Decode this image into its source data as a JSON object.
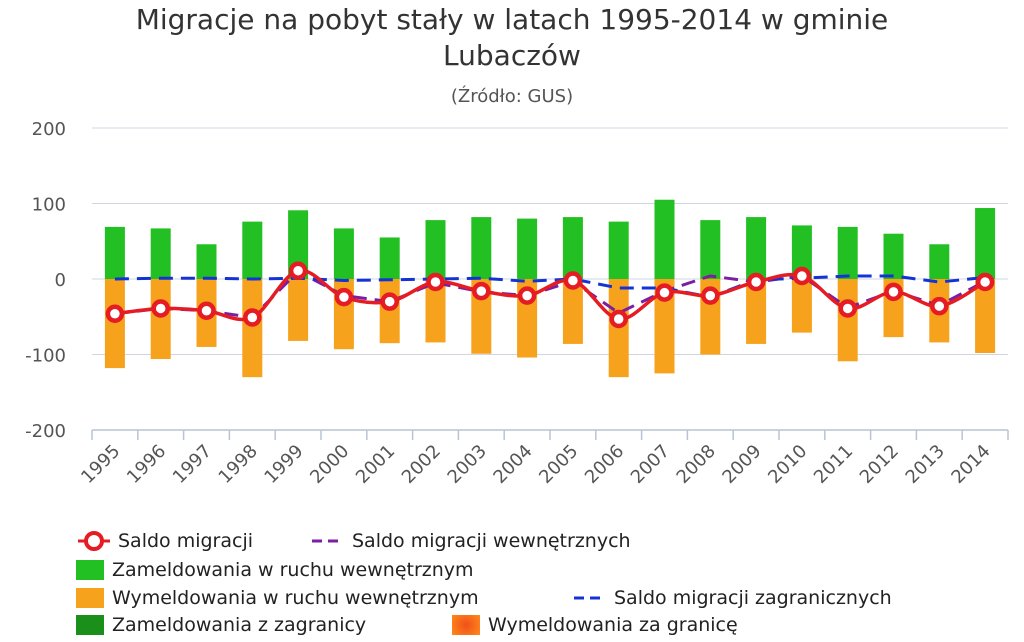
{
  "chart_data": {
    "type": "bar",
    "title": "Migracje na pobyt stały w latach 1995-2014 w gminie Lubaczów",
    "subtitle": "(Źródło: GUS)",
    "categories": [
      "1995",
      "1996",
      "1997",
      "1998",
      "1999",
      "2000",
      "2001",
      "2002",
      "2003",
      "2004",
      "2005",
      "2006",
      "2007",
      "2008",
      "2009",
      "2010",
      "2011",
      "2012",
      "2013",
      "2014"
    ],
    "ylim": [
      -200,
      200
    ],
    "yticks": [
      200,
      100,
      0,
      -100,
      -200
    ],
    "grid": true,
    "legend_position": "bottom",
    "series": [
      {
        "name": "Saldo migracji",
        "kind": "line",
        "color": "#e51c23",
        "values": [
          -46,
          -39,
          -42,
          -51,
          11,
          -24,
          -30,
          -4,
          -16,
          -22,
          -2,
          -53,
          -18,
          -22,
          -4,
          4,
          -39,
          -17,
          -36,
          -4
        ]
      },
      {
        "name": "Saldo migracji wewnętrznych",
        "kind": "dashed-line",
        "color": "#7b1fa2",
        "values": [
          -46,
          -39,
          -42,
          -51,
          10,
          -22,
          -30,
          -5,
          -17,
          -22,
          -3,
          -45,
          -16,
          4,
          -4,
          4,
          -38,
          -16,
          -35,
          -3
        ]
      },
      {
        "name": "Zameldowania w ruchu wewnętrznym",
        "kind": "bar-positive",
        "color": "#22c022",
        "values": [
          69,
          67,
          46,
          76,
          91,
          67,
          55,
          78,
          82,
          80,
          82,
          76,
          105,
          78,
          82,
          71,
          69,
          60,
          46,
          94
        ]
      },
      {
        "name": "Wymeldowania w ruchu wewnętrznym",
        "kind": "bar-negative",
        "color": "#f7a21c",
        "values": [
          -118,
          -106,
          -90,
          -130,
          -82,
          -93,
          -85,
          -84,
          -99,
          -104,
          -86,
          -130,
          -125,
          -100,
          -86,
          -71,
          -109,
          -77,
          -84,
          -98
        ]
      },
      {
        "name": "Saldo migracji zagranicznych",
        "kind": "dashed-line",
        "color": "#1433d6",
        "values": [
          0,
          1,
          1,
          0,
          1,
          -2,
          -1,
          0,
          1,
          -3,
          0,
          -12,
          -12,
          -24,
          -1,
          1,
          4,
          4,
          -4,
          2
        ]
      },
      {
        "name": "Zameldowania z zagranicy",
        "kind": "bar-positive",
        "color": "#1a8f1a",
        "values": [
          0,
          0,
          0,
          0,
          0,
          0,
          0,
          0,
          0,
          0,
          0,
          0,
          0,
          0,
          0,
          0,
          0,
          0,
          0,
          0
        ]
      },
      {
        "name": "Wymeldowania za granicę",
        "kind": "bar-negative",
        "color": "#f0501a",
        "values": [
          0,
          0,
          0,
          0,
          0,
          0,
          0,
          0,
          0,
          0,
          0,
          0,
          0,
          0,
          0,
          0,
          0,
          0,
          0,
          0
        ]
      }
    ]
  }
}
